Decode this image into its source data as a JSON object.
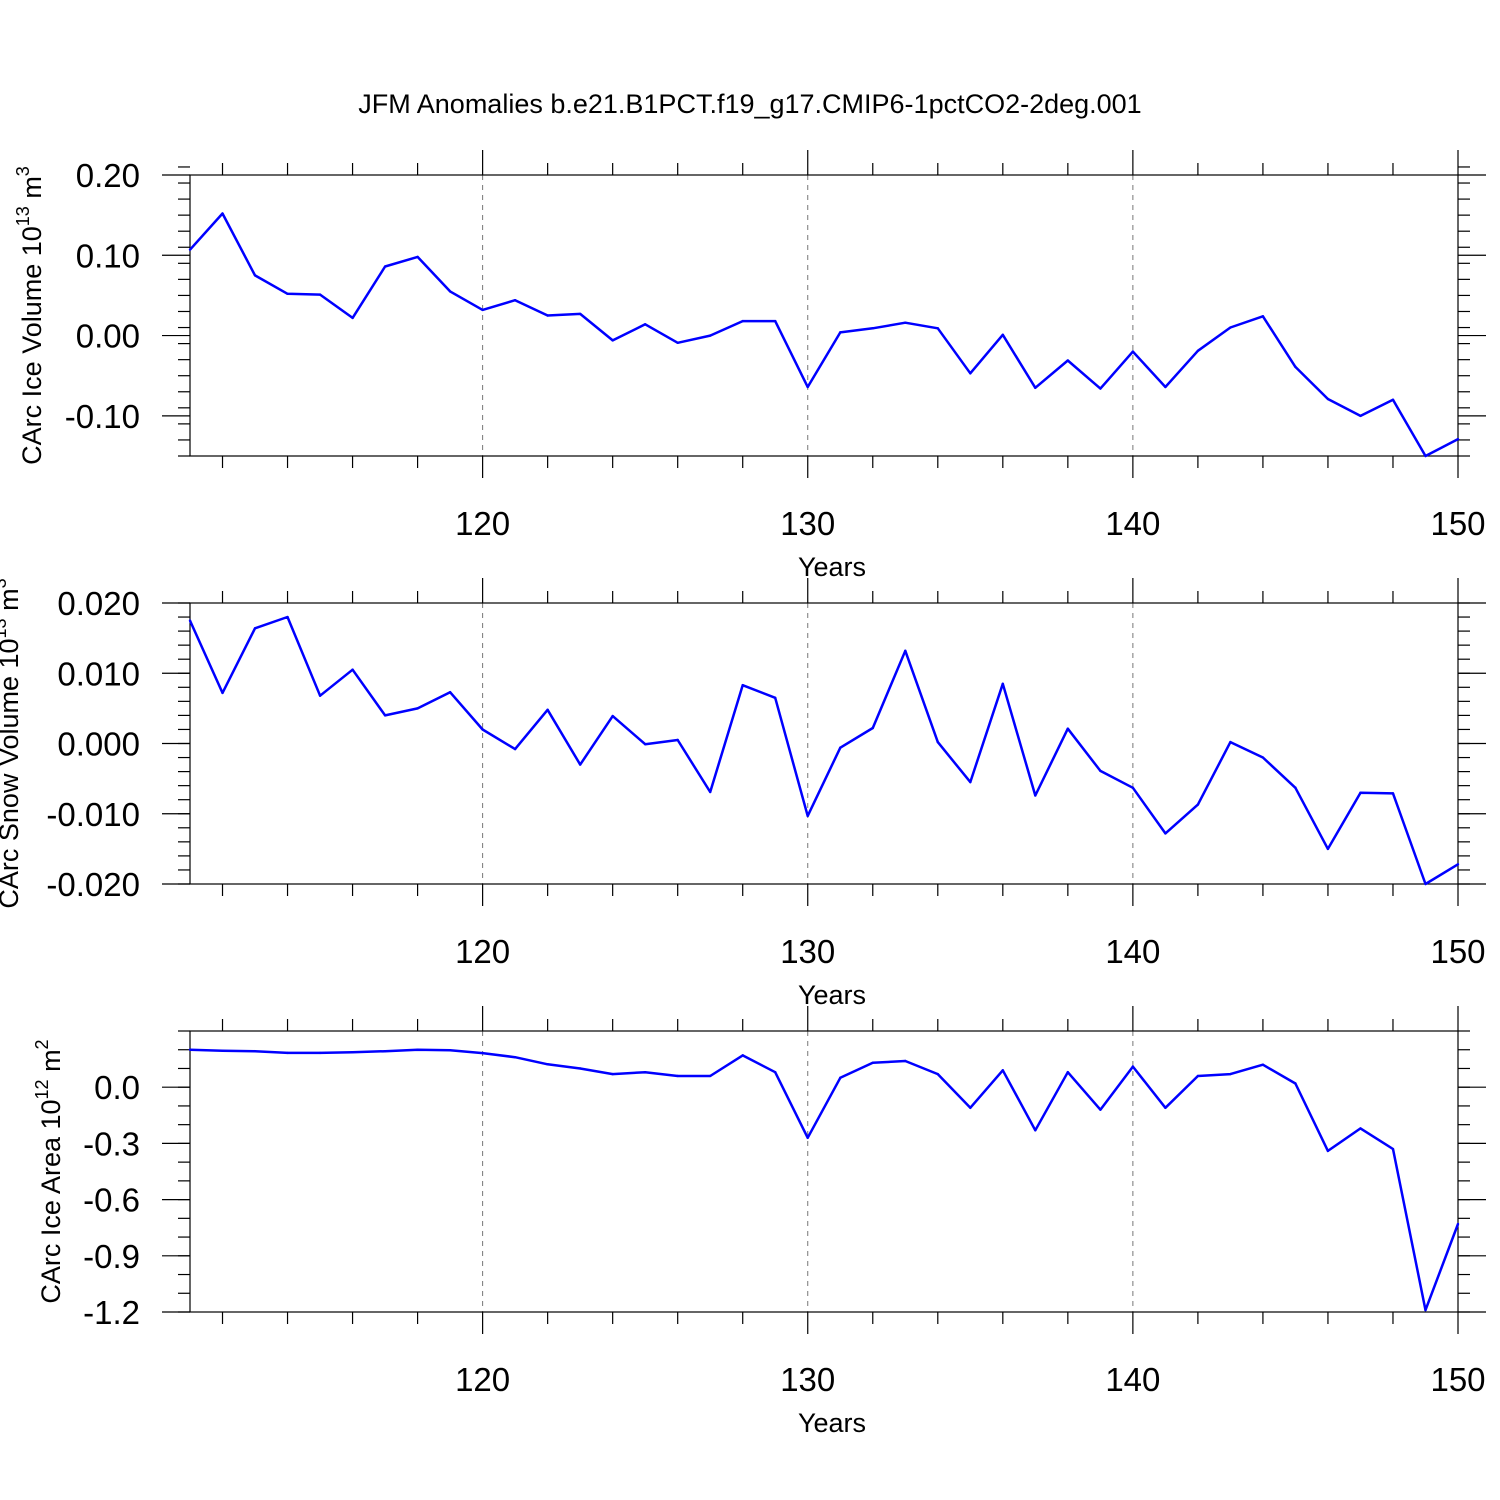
{
  "title": "JFM Anomalies b.e21.B1PCT.f19_g17.CMIP6-1pctCO2-2deg.001",
  "colors": {
    "line": "#0000ff",
    "frame": "#000000",
    "grid": "#777777"
  },
  "chart_data": [
    {
      "type": "line",
      "xlabel": "Years",
      "ylabel_main": "CArc Ice Volume 10",
      "ylabel_exp": "13",
      "ylabel_unit": " m",
      "ylabel_unit_exp": "3",
      "xlim": [
        111,
        150
      ],
      "ylim": [
        -0.15,
        0.2
      ],
      "xticks": [
        120,
        130,
        140,
        150
      ],
      "xtick_labels": [
        "120",
        "130",
        "140",
        "150"
      ],
      "yticks": [
        0.2,
        0.1,
        0.0,
        -0.1
      ],
      "ytick_labels": [
        "0.20",
        "0.10",
        "0.00",
        "-0.10"
      ],
      "yminor_step": 0.02,
      "xgrid": [
        120,
        130,
        140
      ],
      "series": [
        {
          "name": "CArc Ice Volume",
          "x": [
            111,
            112,
            113,
            114,
            115,
            116,
            117,
            118,
            119,
            120,
            121,
            122,
            123,
            124,
            125,
            126,
            127,
            128,
            129,
            130,
            131,
            132,
            133,
            134,
            135,
            136,
            137,
            138,
            139,
            140,
            141,
            142,
            143,
            144,
            145,
            146,
            147,
            148,
            149,
            150
          ],
          "values": [
            0.107,
            0.152,
            0.075,
            0.052,
            0.051,
            0.022,
            0.086,
            0.098,
            0.055,
            0.032,
            0.044,
            0.025,
            0.027,
            -0.006,
            0.014,
            -0.009,
            0.0,
            0.018,
            0.018,
            -0.064,
            0.004,
            0.009,
            0.016,
            0.009,
            -0.047,
            0.001,
            -0.065,
            -0.031,
            -0.066,
            -0.02,
            -0.064,
            -0.019,
            0.01,
            0.024,
            -0.039,
            -0.079,
            -0.1,
            -0.08,
            -0.15,
            -0.129
          ]
        }
      ]
    },
    {
      "type": "line",
      "xlabel": "Years",
      "ylabel_main": "CArc Snow Volume 10",
      "ylabel_exp": "13",
      "ylabel_unit": " m",
      "ylabel_unit_exp": "3",
      "xlim": [
        111,
        150
      ],
      "ylim": [
        -0.02,
        0.02
      ],
      "xticks": [
        120,
        130,
        140,
        150
      ],
      "xtick_labels": [
        "120",
        "130",
        "140",
        "150"
      ],
      "yticks": [
        0.02,
        0.01,
        0.0,
        -0.01,
        -0.02
      ],
      "ytick_labels": [
        "0.020",
        "0.010",
        "0.000",
        "-0.010",
        "-0.020"
      ],
      "yminor_step": 0.002,
      "xgrid": [
        120,
        130,
        140
      ],
      "series": [
        {
          "name": "CArc Snow Volume",
          "x": [
            111,
            112,
            113,
            114,
            115,
            116,
            117,
            118,
            119,
            120,
            121,
            122,
            123,
            124,
            125,
            126,
            127,
            128,
            129,
            130,
            131,
            132,
            133,
            134,
            135,
            136,
            137,
            138,
            139,
            140,
            141,
            142,
            143,
            144,
            145,
            146,
            147,
            148,
            149,
            150
          ],
          "values": [
            0.0175,
            0.0072,
            0.0164,
            0.018,
            0.0068,
            0.0105,
            0.004,
            0.005,
            0.0073,
            0.002,
            -0.0008,
            0.0048,
            -0.003,
            0.0039,
            -0.0001,
            0.0005,
            -0.0069,
            0.0083,
            0.0065,
            -0.0103,
            -0.0006,
            0.0022,
            0.0132,
            0.0002,
            -0.0055,
            0.0085,
            -0.0074,
            0.0021,
            -0.0039,
            -0.0063,
            -0.0128,
            -0.0087,
            0.0002,
            -0.002,
            -0.0063,
            -0.015,
            -0.007,
            -0.0071,
            -0.02,
            -0.0172
          ]
        }
      ]
    },
    {
      "type": "line",
      "xlabel": "Years",
      "ylabel_main": "CArc Ice Area 10",
      "ylabel_exp": "12",
      "ylabel_unit": " m",
      "ylabel_unit_exp": "2",
      "xlim": [
        111,
        150
      ],
      "ylim": [
        -1.2,
        0.3
      ],
      "xticks": [
        120,
        130,
        140,
        150
      ],
      "xtick_labels": [
        "120",
        "130",
        "140",
        "150"
      ],
      "yticks": [
        0.0,
        -0.3,
        -0.6,
        -0.9,
        -1.2
      ],
      "ytick_labels": [
        "0.0",
        "-0.3",
        "-0.6",
        "-0.9",
        "-1.2"
      ],
      "yminor_step": 0.1,
      "xgrid": [
        120,
        130,
        140
      ],
      "series": [
        {
          "name": "CArc Ice Area",
          "x": [
            111,
            112,
            113,
            114,
            115,
            116,
            117,
            118,
            119,
            120,
            121,
            122,
            123,
            124,
            125,
            126,
            127,
            128,
            129,
            130,
            131,
            132,
            133,
            134,
            135,
            136,
            137,
            138,
            139,
            140,
            141,
            142,
            143,
            144,
            145,
            146,
            147,
            148,
            149,
            150
          ],
          "values": [
            0.2,
            0.195,
            0.192,
            0.183,
            0.183,
            0.187,
            0.192,
            0.2,
            0.197,
            0.182,
            0.16,
            0.122,
            0.1,
            0.07,
            0.08,
            0.06,
            0.06,
            0.17,
            0.08,
            -0.27,
            0.05,
            0.13,
            0.14,
            0.07,
            -0.11,
            0.09,
            -0.23,
            0.08,
            -0.12,
            0.11,
            -0.11,
            0.06,
            0.07,
            0.12,
            0.02,
            -0.34,
            -0.22,
            -0.33,
            -1.19,
            -0.73
          ]
        }
      ]
    }
  ]
}
